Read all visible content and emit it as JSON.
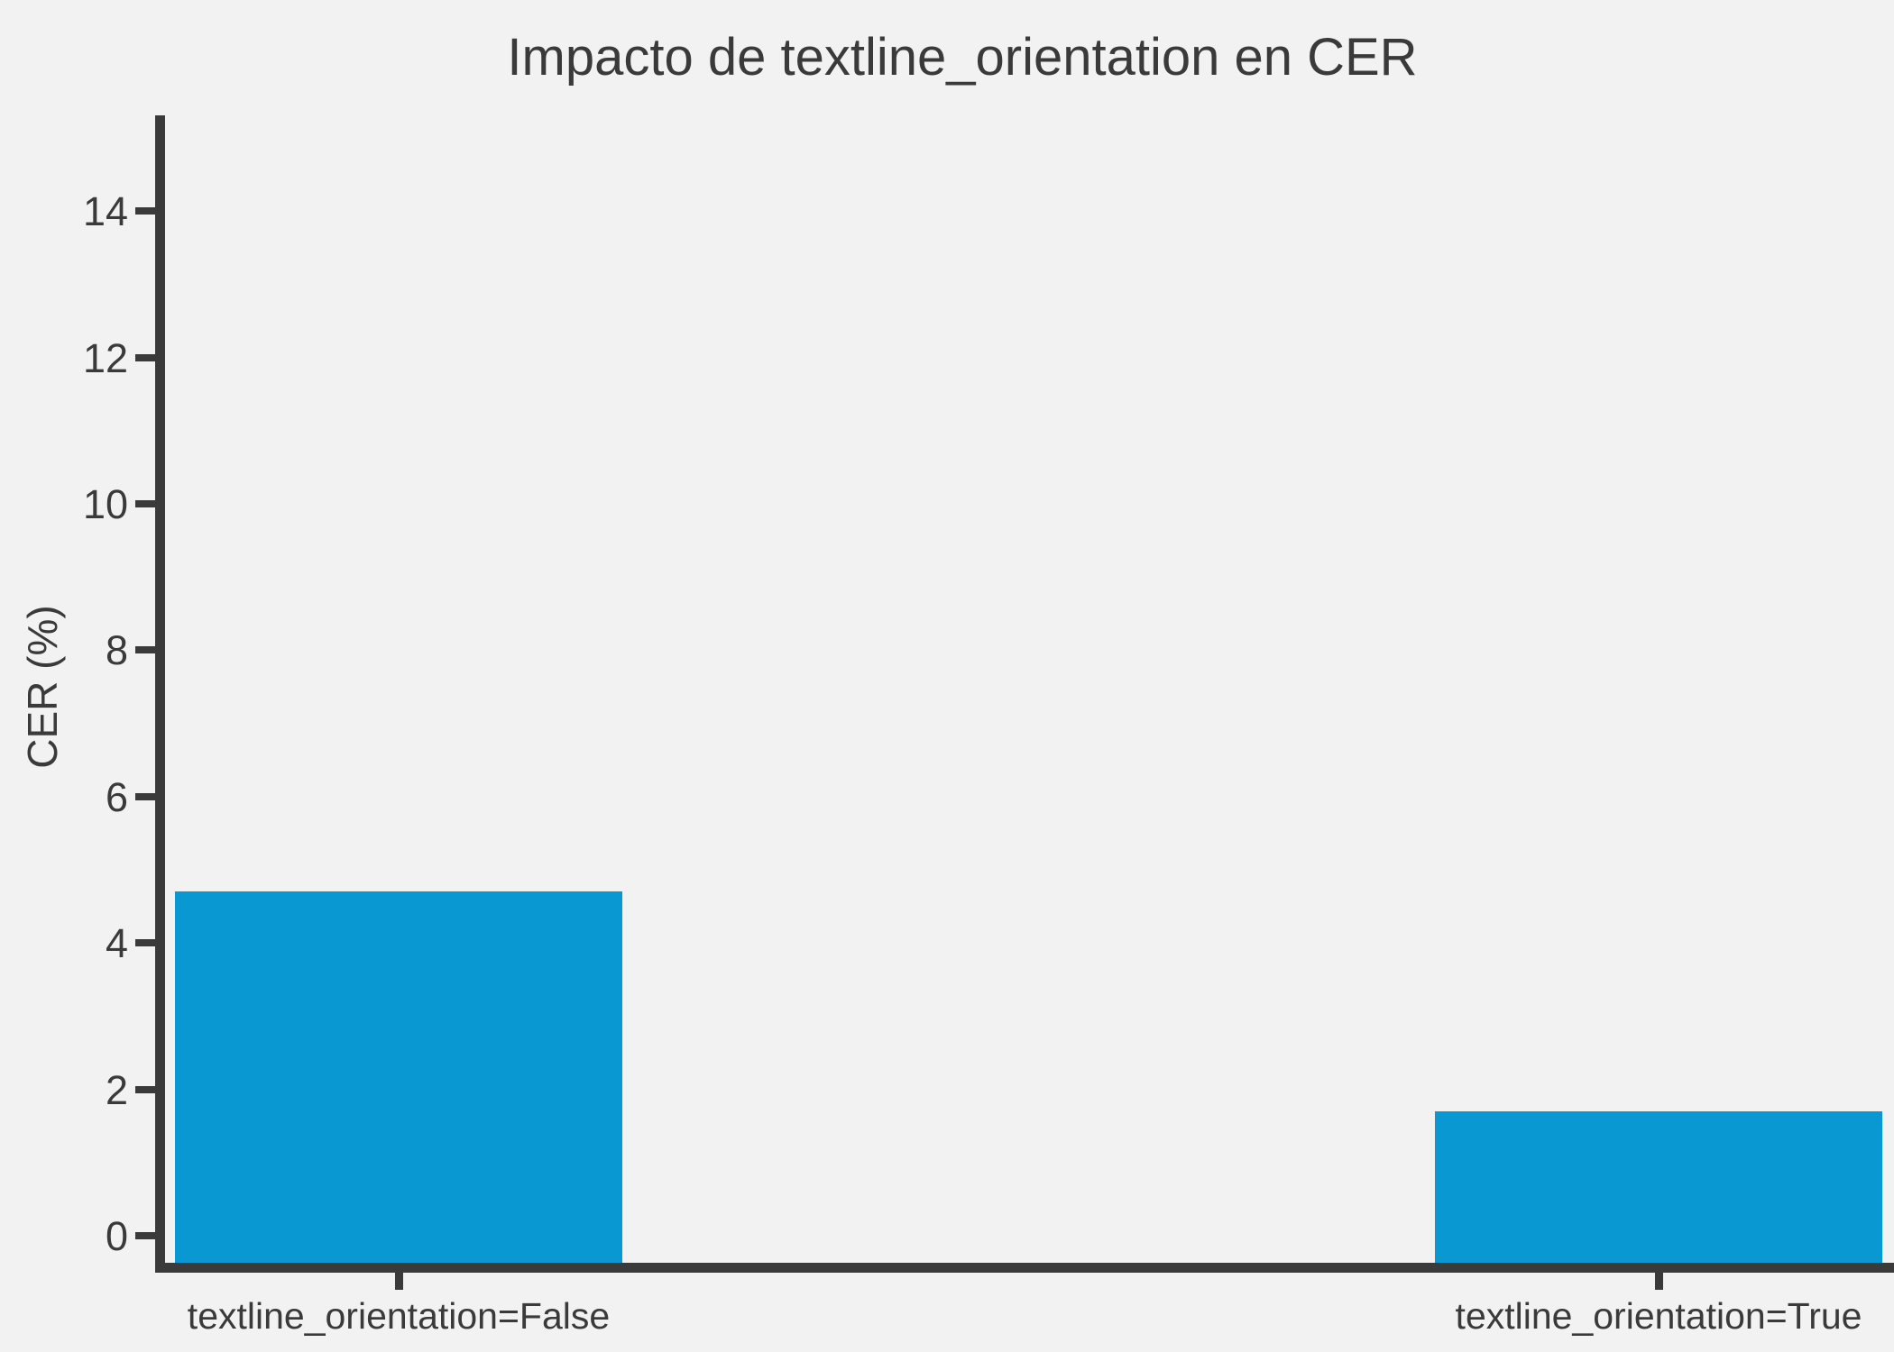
{
  "chart_data": {
    "type": "bar",
    "title": "Impacto de textline_orientation en CER",
    "ylabel": "CER (%)",
    "xlabel": "",
    "categories": [
      "textline_orientation=False",
      "textline_orientation=True"
    ],
    "values": [
      4.7,
      1.7
    ],
    "yticks": [
      0,
      2,
      4,
      6,
      8,
      10,
      12,
      14
    ],
    "ylim": [
      -0.4,
      15.3
    ],
    "grid": false,
    "legend": "none",
    "bar_color": "#0998d2",
    "background_color": "#f2f2f2",
    "axis_color": "#3a3a3a",
    "text_color": "#3a3a3a"
  }
}
